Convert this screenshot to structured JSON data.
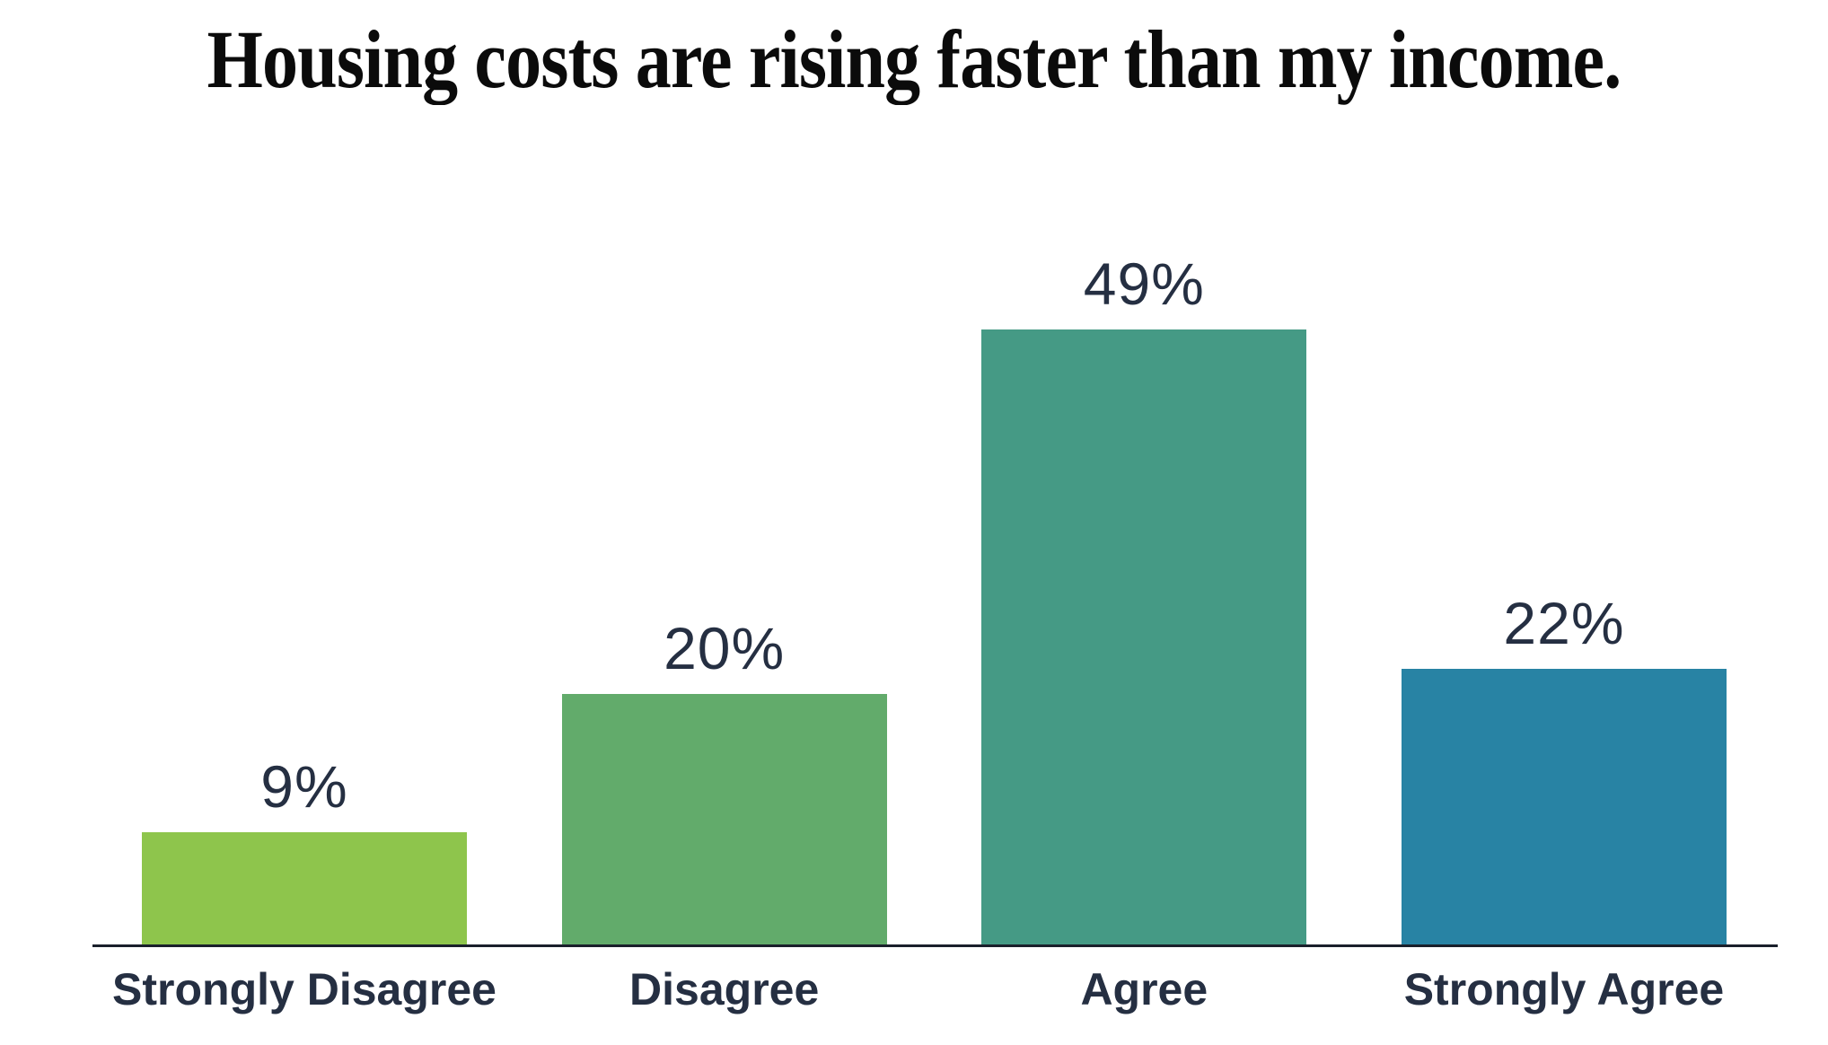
{
  "chart_data": {
    "type": "bar",
    "title": "Housing costs are rising faster than my income.",
    "categories": [
      "Strongly Disagree",
      "Disagree",
      "Agree",
      "Strongly Agree"
    ],
    "values": [
      9,
      20,
      49,
      22
    ],
    "value_labels": [
      "9%",
      "20%",
      "49%",
      "22%"
    ],
    "bar_colors": [
      "#8ec54c",
      "#62ab6b",
      "#459a85",
      "#2883a4"
    ],
    "xlabel": "",
    "ylabel": "",
    "ylim": [
      0,
      55
    ],
    "grid": false,
    "legend": "none",
    "label_color": "#252f42",
    "title_color": "#0b0b0b",
    "axis_line_color": "#1a202b",
    "background_color": "#ffffff"
  }
}
